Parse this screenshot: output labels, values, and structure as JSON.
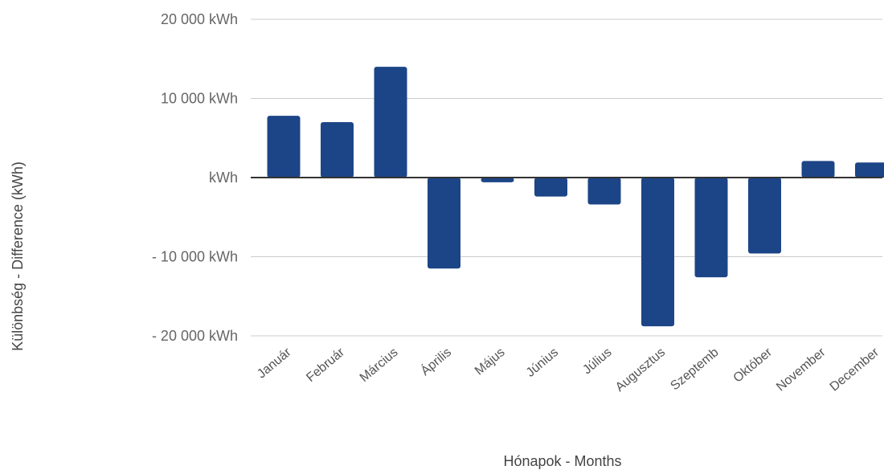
{
  "chart_data": {
    "type": "bar",
    "title": "",
    "xlabel": "Hónapok - Months",
    "ylabel": "Különbség - Difference (kWh)",
    "categories": [
      "Január",
      "Február",
      "Március",
      "Április",
      "Május",
      "Június",
      "Július",
      "Augusztus",
      "Szeptemb",
      "Október",
      "November",
      "December"
    ],
    "values": [
      7800,
      7000,
      14000,
      -11500,
      -600,
      -2400,
      -3400,
      -18800,
      -12600,
      -9600,
      2100,
      1900
    ],
    "ylim": [
      -20000,
      20000
    ],
    "yticks": [
      {
        "value": 20000,
        "label": "20 000  kWh"
      },
      {
        "value": 10000,
        "label": "10 000  kWh"
      },
      {
        "value": 0,
        "label": "kWh"
      },
      {
        "value": -10000,
        "label": "- 10 000  kWh"
      },
      {
        "value": -20000,
        "label": "- 20 000  kWh"
      }
    ],
    "grid": true,
    "legend": "none",
    "bar_color": "#1c4587",
    "grid_color": "#cccccc",
    "zero_line_color": "#333333"
  }
}
